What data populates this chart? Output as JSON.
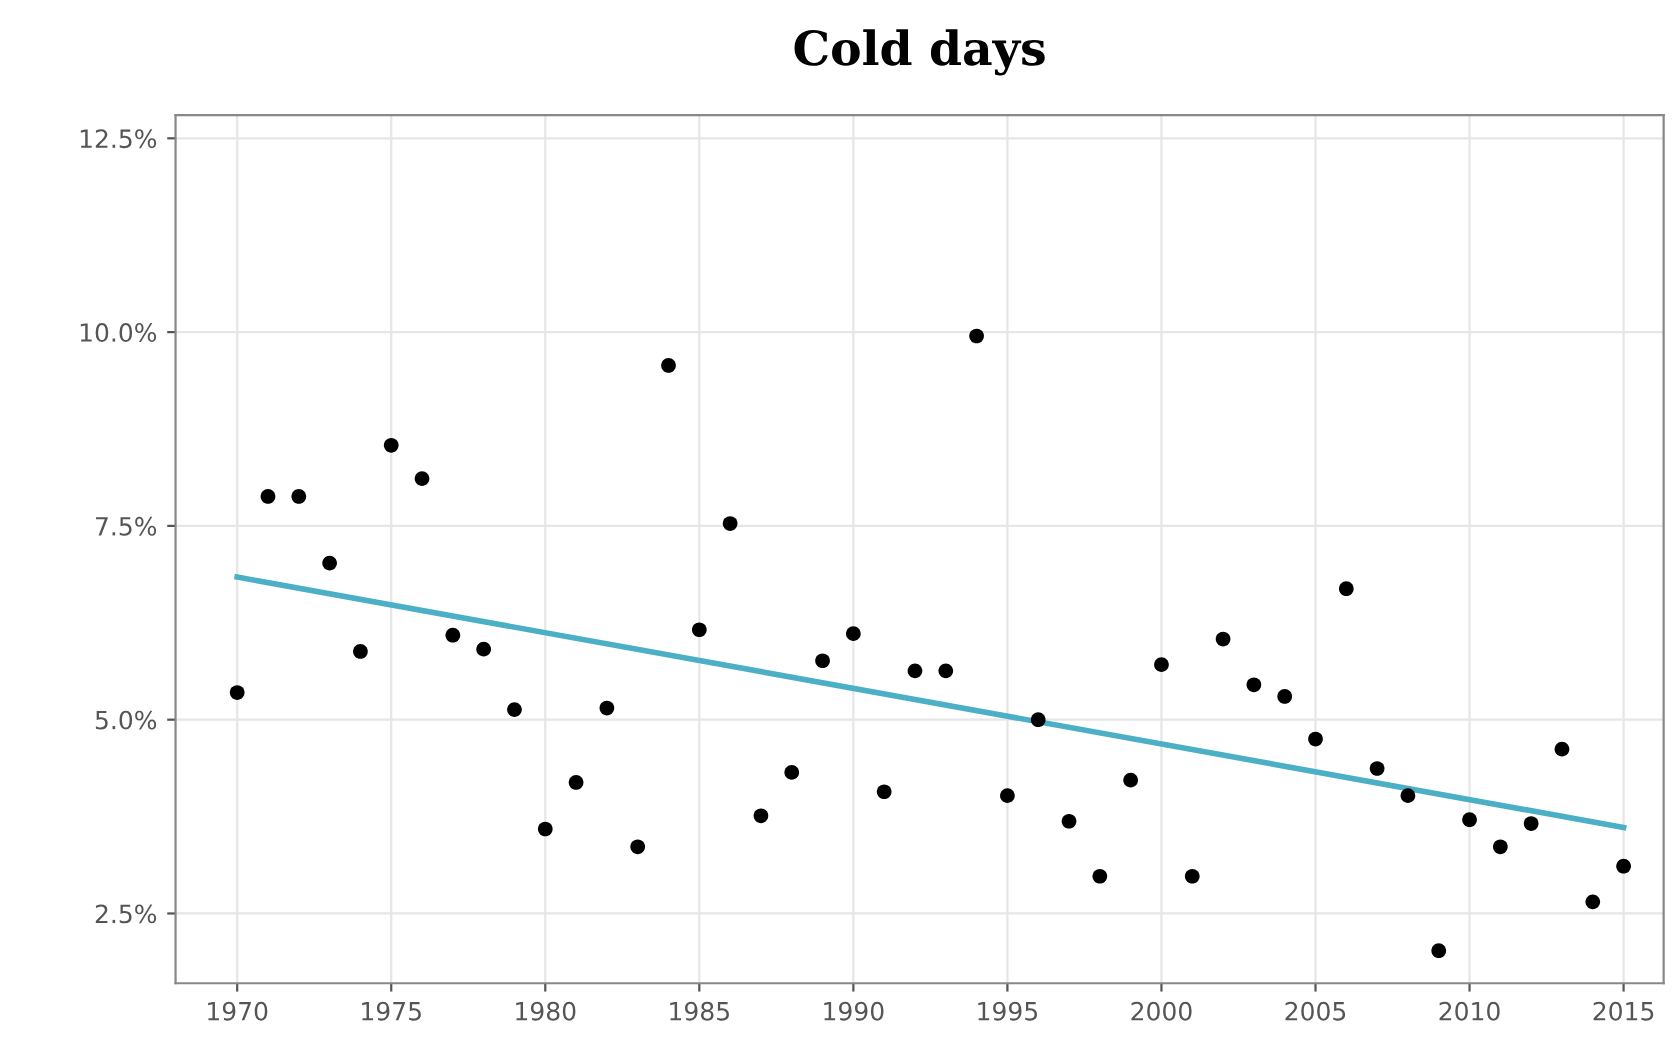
{
  "chart_data": {
    "type": "scatter",
    "title": "Cold days",
    "x": [
      1970,
      1971,
      1972,
      1973,
      1974,
      1975,
      1976,
      1977,
      1978,
      1979,
      1980,
      1981,
      1982,
      1983,
      1984,
      1985,
      1986,
      1987,
      1988,
      1989,
      1990,
      1991,
      1992,
      1993,
      1994,
      1995,
      1996,
      1997,
      1998,
      1999,
      2000,
      2001,
      2002,
      2003,
      2004,
      2005,
      2006,
      2007,
      2008,
      2009,
      2010,
      2011,
      2012,
      2013,
      2014,
      2015
    ],
    "series": [
      {
        "color": "#000000",
        "marker": "circle",
        "values": [
          5.35,
          7.88,
          7.88,
          7.02,
          5.88,
          8.54,
          8.11,
          6.09,
          5.91,
          5.13,
          3.59,
          4.19,
          5.15,
          3.36,
          9.57,
          6.16,
          7.53,
          3.76,
          4.32,
          5.76,
          6.11,
          4.07,
          5.63,
          5.63,
          9.95,
          4.02,
          5.0,
          3.69,
          2.98,
          4.22,
          5.71,
          2.98,
          6.04,
          5.45,
          5.3,
          4.75,
          6.69,
          4.37,
          4.02,
          2.02,
          3.71,
          3.36,
          3.66,
          4.62,
          2.65,
          3.11
        ]
      },
      {
        "type": "line",
        "color": "#4bafc6",
        "x": [
          1970,
          2015
        ],
        "values": [
          6.84,
          3.61
        ],
        "line_style": "solid"
      }
    ],
    "xlim": [
      1968,
      2016.3
    ],
    "ylim": [
      1.6,
      12.8
    ],
    "xticks": [
      1970,
      1975,
      1980,
      1985,
      1990,
      1995,
      2000,
      2005,
      2010,
      2015
    ],
    "yticks": [
      {
        "value": 2.5,
        "label": "2.5%"
      },
      {
        "value": 5.0,
        "label": "5.0%"
      },
      {
        "value": 7.5,
        "label": "7.5%"
      },
      {
        "value": 10.0,
        "label": "10.0%"
      },
      {
        "value": 12.5,
        "label": "12.5%"
      }
    ],
    "grid": true
  }
}
